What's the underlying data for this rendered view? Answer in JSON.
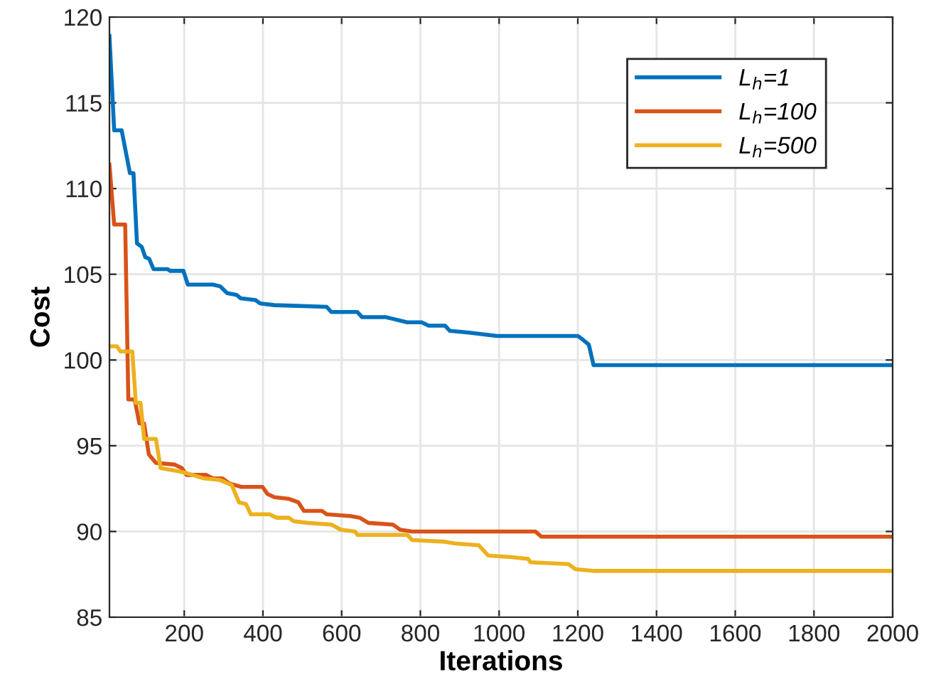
{
  "chart_data": {
    "type": "line",
    "xlabel": "Iterations",
    "ylabel": "Cost",
    "xlim": [
      10,
      2000
    ],
    "ylim": [
      85,
      120
    ],
    "xticks": [
      200,
      400,
      600,
      800,
      1000,
      1200,
      1400,
      1600,
      1800,
      2000
    ],
    "yticks": [
      85,
      90,
      95,
      100,
      105,
      110,
      115,
      120
    ],
    "grid": true,
    "legend": "top right",
    "line_style": "solid",
    "marker": "none",
    "series": [
      {
        "name": "L$_{h}$=1",
        "color": "#0072bd",
        "x": [
          10,
          22,
          41,
          62,
          71,
          80,
          92,
          101,
          111,
          122,
          158,
          164,
          198,
          209,
          273,
          291,
          309,
          333,
          343,
          381,
          393,
          429,
          562,
          574,
          640,
          652,
          712,
          730,
          766,
          803,
          821,
          863,
          875,
          923,
          995,
          1200,
          1212,
          1228,
          1240,
          2000
        ],
        "values": [
          118.9,
          113.4,
          113.4,
          110.9,
          110.9,
          106.8,
          106.6,
          106.0,
          105.9,
          105.3,
          105.3,
          105.2,
          105.2,
          104.4,
          104.4,
          104.3,
          103.9,
          103.8,
          103.6,
          103.5,
          103.3,
          103.2,
          103.1,
          102.8,
          102.8,
          102.5,
          102.5,
          102.4,
          102.2,
          102.2,
          102.0,
          102.0,
          101.7,
          101.6,
          101.4,
          101.4,
          101.2,
          100.9,
          99.7,
          99.7
        ]
      },
      {
        "name": "L$_{h}$=100",
        "color": "#d95319",
        "x": [
          10,
          22,
          50,
          58,
          74,
          86,
          98,
          110,
          128,
          176,
          194,
          206,
          255,
          273,
          297,
          315,
          345,
          399,
          411,
          429,
          466,
          490,
          504,
          550,
          562,
          622,
          646,
          668,
          730,
          749,
          779,
          1092,
          1107,
          2000
        ],
        "values": [
          111.4,
          107.9,
          107.9,
          97.7,
          97.7,
          96.3,
          96.3,
          94.5,
          94.0,
          93.9,
          93.7,
          93.3,
          93.3,
          93.1,
          93.1,
          92.8,
          92.6,
          92.6,
          92.2,
          92.0,
          91.9,
          91.7,
          91.2,
          91.2,
          91.0,
          90.9,
          90.8,
          90.5,
          90.4,
          90.1,
          90.0,
          90.0,
          89.7,
          89.7
        ]
      },
      {
        "name": "L$_{h}$=500",
        "color": "#edb120",
        "x": [
          10,
          29,
          38,
          68,
          77,
          89,
          98,
          128,
          140,
          188,
          206,
          249,
          291,
          321,
          339,
          357,
          369,
          417,
          435,
          466,
          478,
          514,
          574,
          598,
          634,
          640,
          767,
          779,
          863,
          887,
          948,
          972,
          1032,
          1074,
          1080,
          1176,
          1194,
          1242,
          2000
        ],
        "values": [
          100.8,
          100.8,
          100.5,
          100.5,
          97.5,
          97.5,
          95.4,
          95.4,
          93.7,
          93.5,
          93.4,
          93.1,
          93.0,
          92.7,
          91.7,
          91.6,
          91.0,
          91.0,
          90.8,
          90.8,
          90.6,
          90.5,
          90.4,
          90.1,
          90.0,
          89.8,
          89.8,
          89.5,
          89.4,
          89.3,
          89.2,
          88.6,
          88.5,
          88.4,
          88.2,
          88.1,
          87.8,
          87.7,
          87.7
        ]
      }
    ]
  }
}
